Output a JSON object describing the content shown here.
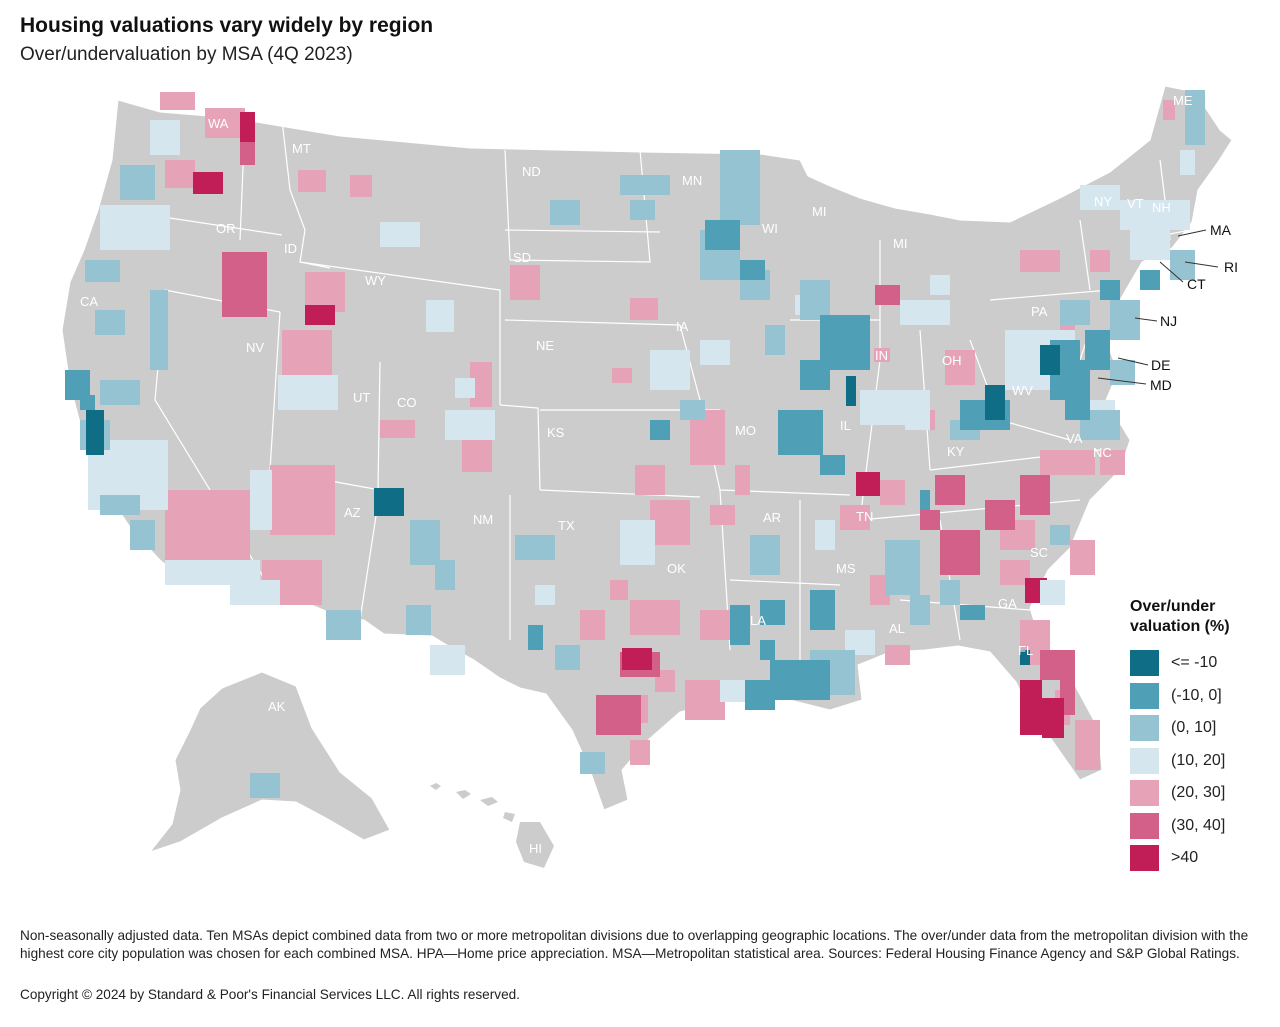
{
  "title": "Housing valuations vary widely by region",
  "subtitle": "Over/undervaluation by MSA (4Q 2023)",
  "legend": {
    "title": "Over/under valuation (%)",
    "items": [
      {
        "label": "<= -10",
        "color": "#0f6e85"
      },
      {
        "label": "(-10, 0]",
        "color": "#4f9fb6"
      },
      {
        "label": "(0, 10]",
        "color": "#96c3d2"
      },
      {
        "label": "(10, 20]",
        "color": "#d6e6ee"
      },
      {
        "label": "(20, 30]",
        "color": "#e6a3b8"
      },
      {
        "label": "(30, 40]",
        "color": "#d36088"
      },
      {
        "label": ">40",
        "color": "#c11e57"
      }
    ]
  },
  "map": {
    "base_color": "#cccccc",
    "state_labels": [
      "WA",
      "MT",
      "ND",
      "MN",
      "ME",
      "OR",
      "ID",
      "SD",
      "WI",
      "MI",
      "MI",
      "NY",
      "VT",
      "NH",
      "WY",
      "IA",
      "PA",
      "CA",
      "NV",
      "NE",
      "OH",
      "IN",
      "WV",
      "UT",
      "CO",
      "KS",
      "MO",
      "IL",
      "KY",
      "VA",
      "NC",
      "AZ",
      "NM",
      "TX",
      "OK",
      "AR",
      "TN",
      "SC",
      "MS",
      "AL",
      "GA",
      "LA",
      "FL",
      "AK",
      "HI"
    ],
    "callout_labels": [
      "MA",
      "RI",
      "CT",
      "NJ",
      "DE",
      "MD"
    ]
  },
  "footnote": "Non-seasonally adjusted data. Ten MSAs depict combined data from two or more metropolitan divisions due to overlapping geographic locations. The over/under data from the metropolitan division with the highest core city population was chosen for each combined MSA. HPA—Home price appreciation. MSA—Metropolitan statistical area. Sources: Federal Housing Finance Agency  and S&P Global Ratings.",
  "copyright": "Copyright © 2024 by Standard & Poor's Financial Services LLC. All rights reserved."
}
